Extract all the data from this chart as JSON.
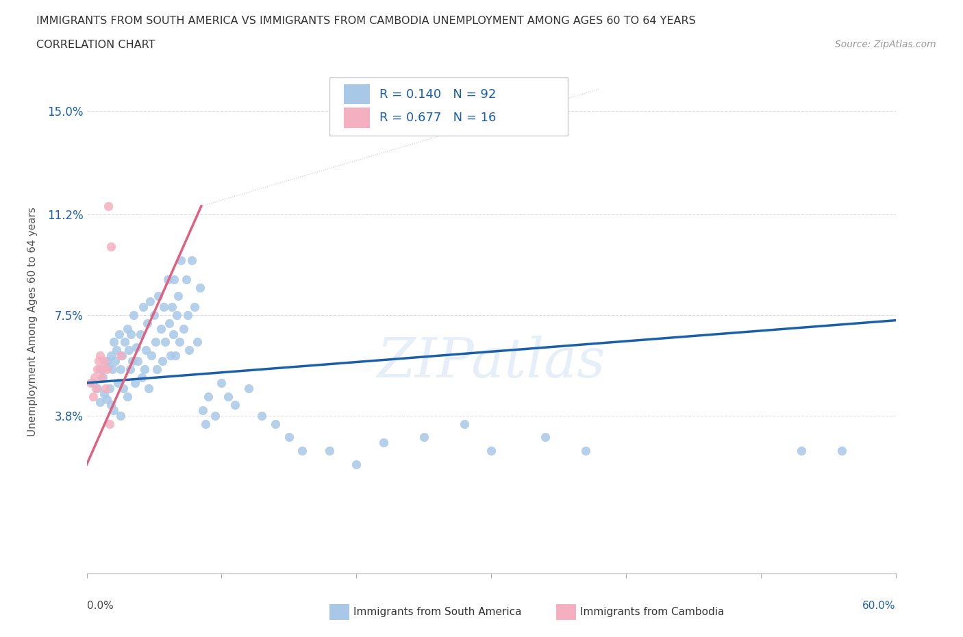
{
  "title_line1": "IMMIGRANTS FROM SOUTH AMERICA VS IMMIGRANTS FROM CAMBODIA UNEMPLOYMENT AMONG AGES 60 TO 64 YEARS",
  "title_line2": "CORRELATION CHART",
  "source_text": "Source: ZipAtlas.com",
  "ylabel": "Unemployment Among Ages 60 to 64 years",
  "xlim": [
    0.0,
    0.6
  ],
  "ylim": [
    -0.02,
    0.165
  ],
  "ytick_positions": [
    0.038,
    0.075,
    0.112,
    0.15
  ],
  "ytick_labels": [
    "3.8%",
    "7.5%",
    "11.2%",
    "15.0%"
  ],
  "r_south_america": 0.14,
  "n_south_america": 92,
  "r_cambodia": 0.677,
  "n_cambodia": 16,
  "color_south_america": "#a8c8e8",
  "color_cambodia": "#f4b0c0",
  "trendline_south_america_color": "#1a5fa8",
  "trendline_cambodia_color": "#e06080",
  "watermark": "ZIPatlas",
  "legend_label_sa": "Immigrants from South America",
  "legend_label_cam": "Immigrants from Cambodia",
  "sa_trendline_x": [
    0.0,
    0.6
  ],
  "sa_trendline_y": [
    0.05,
    0.073
  ],
  "cam_trendline_x": [
    0.0,
    0.085
  ],
  "cam_trendline_y": [
    0.02,
    0.115
  ],
  "south_america_x": [
    0.005,
    0.008,
    0.01,
    0.01,
    0.012,
    0.013,
    0.015,
    0.015,
    0.016,
    0.017,
    0.018,
    0.018,
    0.019,
    0.02,
    0.02,
    0.021,
    0.022,
    0.023,
    0.024,
    0.025,
    0.025,
    0.026,
    0.027,
    0.028,
    0.03,
    0.03,
    0.031,
    0.032,
    0.033,
    0.034,
    0.035,
    0.036,
    0.037,
    0.038,
    0.04,
    0.041,
    0.042,
    0.043,
    0.044,
    0.045,
    0.046,
    0.047,
    0.048,
    0.05,
    0.051,
    0.052,
    0.053,
    0.055,
    0.056,
    0.057,
    0.058,
    0.06,
    0.061,
    0.062,
    0.063,
    0.064,
    0.065,
    0.066,
    0.067,
    0.068,
    0.069,
    0.07,
    0.072,
    0.074,
    0.075,
    0.076,
    0.078,
    0.08,
    0.082,
    0.084,
    0.086,
    0.088,
    0.09,
    0.095,
    0.1,
    0.105,
    0.11,
    0.12,
    0.13,
    0.14,
    0.15,
    0.16,
    0.18,
    0.2,
    0.22,
    0.25,
    0.28,
    0.3,
    0.34,
    0.37,
    0.53,
    0.56
  ],
  "south_america_y": [
    0.05,
    0.048,
    0.055,
    0.043,
    0.052,
    0.046,
    0.058,
    0.044,
    0.056,
    0.048,
    0.06,
    0.042,
    0.055,
    0.065,
    0.04,
    0.058,
    0.062,
    0.05,
    0.068,
    0.055,
    0.038,
    0.06,
    0.048,
    0.065,
    0.07,
    0.045,
    0.062,
    0.055,
    0.068,
    0.058,
    0.075,
    0.05,
    0.063,
    0.058,
    0.068,
    0.052,
    0.078,
    0.055,
    0.062,
    0.072,
    0.048,
    0.08,
    0.06,
    0.075,
    0.065,
    0.055,
    0.082,
    0.07,
    0.058,
    0.078,
    0.065,
    0.088,
    0.072,
    0.06,
    0.078,
    0.068,
    0.088,
    0.06,
    0.075,
    0.082,
    0.065,
    0.095,
    0.07,
    0.088,
    0.075,
    0.062,
    0.095,
    0.078,
    0.065,
    0.085,
    0.04,
    0.035,
    0.045,
    0.038,
    0.05,
    0.045,
    0.042,
    0.048,
    0.038,
    0.035,
    0.03,
    0.025,
    0.025,
    0.02,
    0.028,
    0.03,
    0.035,
    0.025,
    0.03,
    0.025,
    0.025,
    0.025
  ],
  "cambodia_x": [
    0.003,
    0.005,
    0.006,
    0.007,
    0.008,
    0.009,
    0.01,
    0.011,
    0.012,
    0.013,
    0.014,
    0.015,
    0.016,
    0.017,
    0.018,
    0.025
  ],
  "cambodia_y": [
    0.05,
    0.045,
    0.052,
    0.048,
    0.055,
    0.058,
    0.06,
    0.052,
    0.055,
    0.058,
    0.048,
    0.055,
    0.115,
    0.035,
    0.1,
    0.06
  ]
}
